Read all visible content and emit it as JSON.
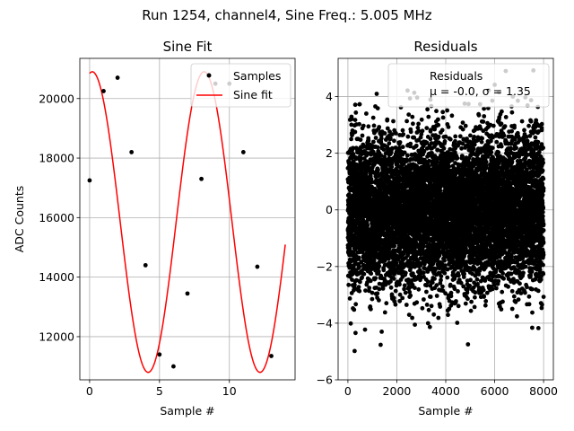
{
  "figure": {
    "suptitle": "Run 1254, channel4, Sine Freq.: 5.005 MHz"
  },
  "chart_data": [
    {
      "type": "line",
      "title": "Sine Fit",
      "xlabel": "Sample #",
      "ylabel": "ADC Counts",
      "xlim": [
        -0.7,
        14.7
      ],
      "ylim": [
        10550,
        21350
      ],
      "grid": true,
      "legend": {
        "placement": "top-right",
        "entries": [
          "Samples",
          "Sine fit"
        ]
      },
      "x_ticks": [
        {
          "value": 0,
          "label": "0"
        },
        {
          "value": 5,
          "label": "5"
        },
        {
          "value": 10,
          "label": "10"
        }
      ],
      "y_ticks": [
        {
          "value": 12000,
          "label": "12000"
        },
        {
          "value": 14000,
          "label": "14000"
        },
        {
          "value": 16000,
          "label": "16000"
        },
        {
          "value": 18000,
          "label": "18000"
        },
        {
          "value": 20000,
          "label": "20000"
        }
      ],
      "series": [
        {
          "name": "Samples",
          "kind": "scatter",
          "color": "#000000",
          "x": [
            0,
            1,
            2,
            3,
            4,
            5,
            6,
            7,
            8,
            9,
            10,
            11,
            12,
            13
          ],
          "y": [
            17250,
            20250,
            20700,
            18200,
            14400,
            11400,
            11000,
            13450,
            17300,
            20500,
            20500,
            18200,
            14350,
            11350
          ]
        },
        {
          "name": "Sine fit",
          "kind": "line",
          "color": "#ff0000",
          "model": {
            "offset": 15850,
            "amplitude": 5050,
            "period": 8.0,
            "phase_deg": 81.4,
            "x_range": [
              0,
              14
            ]
          }
        }
      ]
    },
    {
      "type": "scatter",
      "title": "Residuals",
      "xlabel": "Sample #",
      "ylabel": "",
      "xlim": [
        -400,
        8400
      ],
      "ylim": [
        -6.0,
        5.35
      ],
      "grid": true,
      "legend": {
        "placement": "top-right",
        "entries": [
          "Residuals",
          "μ = -0.0, σ = 1.35"
        ]
      },
      "x_ticks": [
        {
          "value": 0,
          "label": "0"
        },
        {
          "value": 2000,
          "label": "2000"
        },
        {
          "value": 4000,
          "label": "4000"
        },
        {
          "value": 6000,
          "label": "6000"
        },
        {
          "value": 8000,
          "label": "8000"
        }
      ],
      "y_ticks": [
        {
          "value": -6,
          "label": "−6"
        },
        {
          "value": -4,
          "label": "−4"
        },
        {
          "value": -2,
          "label": "−2"
        },
        {
          "value": 0,
          "label": "0"
        },
        {
          "value": 2,
          "label": "2"
        },
        {
          "value": 4,
          "label": "4"
        }
      ],
      "series": [
        {
          "name": "Residuals",
          "color": "#000000",
          "distribution": {
            "mean": -0.0,
            "std": 1.35,
            "count": 8000,
            "x_range": [
              0,
              8000
            ]
          }
        }
      ]
    }
  ]
}
